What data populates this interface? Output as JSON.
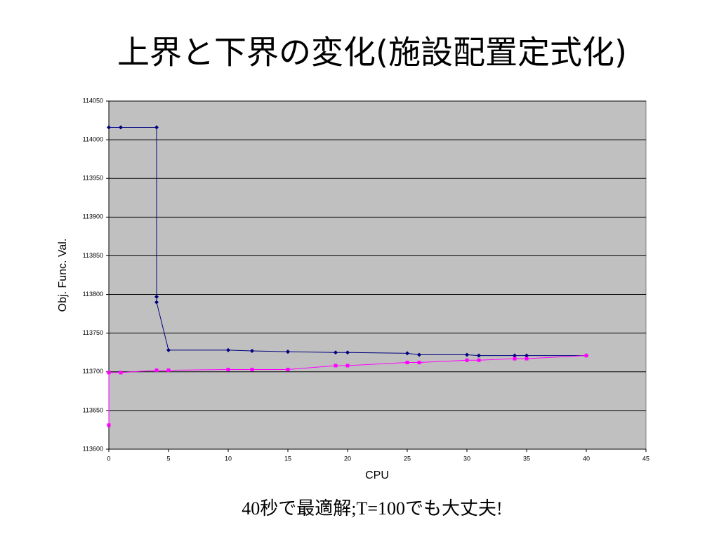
{
  "chart_data": {
    "type": "line",
    "title": "上界と下界の変化(施設配置定式化)",
    "caption": "40秒で最適解;T=100でも大丈夫!",
    "x_label": "CPU",
    "y_label": "Obj. Func. Val.",
    "xlim": [
      0,
      45
    ],
    "xticks": [
      0,
      5,
      10,
      15,
      20,
      25,
      30,
      35,
      40,
      45
    ],
    "ylim": [
      113600,
      114050
    ],
    "yticks": [
      113600,
      113650,
      113700,
      113750,
      113800,
      113850,
      113900,
      113950,
      114000,
      114050
    ],
    "grid": true,
    "series": [
      {
        "color": "#000080",
        "x": [
          0,
          1,
          4,
          4,
          4,
          5,
          10,
          12,
          15,
          15,
          19,
          20,
          25,
          26,
          30,
          31,
          34,
          35,
          40
        ],
        "values": [
          114016,
          114016,
          114016,
          113797,
          113790,
          113728,
          113728,
          113727,
          113726,
          113726,
          113725,
          113725,
          113724,
          113722,
          113722,
          113721,
          113721,
          113721,
          113721
        ]
      },
      {
        "color": "#ff00ff",
        "x": [
          0,
          0,
          1,
          4,
          5,
          10,
          12,
          15,
          19,
          20,
          25,
          26,
          30,
          31,
          34,
          35,
          40
        ],
        "values": [
          113631,
          113699,
          113699,
          113702,
          113702,
          113703,
          113703,
          113703,
          113708,
          113708,
          113712,
          113712,
          113715,
          113715,
          113717,
          113717,
          113721
        ]
      }
    ]
  }
}
